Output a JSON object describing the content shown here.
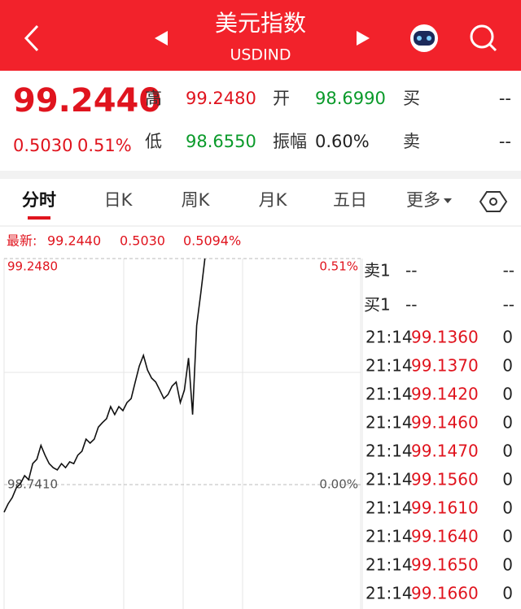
{
  "header": {
    "title": "美元指数",
    "subtitle": "USDIND"
  },
  "quote": {
    "price": "99.2440",
    "change": "0.5030",
    "change_pct": "0.51%",
    "stats": [
      {
        "label": "高",
        "value": "99.2480",
        "color": "#e0141e"
      },
      {
        "label": "开",
        "value": "98.6990",
        "color": "#0a9a2a"
      },
      {
        "label": "买",
        "value": "--",
        "color": "#222222"
      },
      {
        "label": "低",
        "value": "98.6550",
        "color": "#0a9a2a"
      },
      {
        "label": "振幅",
        "value": "0.60%",
        "color": "#222222"
      },
      {
        "label": "卖",
        "value": "--",
        "color": "#222222"
      }
    ]
  },
  "tabs": {
    "items": [
      "分时",
      "日K",
      "周K",
      "月K",
      "五日",
      "更多"
    ],
    "active": 0
  },
  "latest": {
    "label": "最新:",
    "price": "99.2440",
    "change": "0.5030",
    "change_pct": "0.5094%"
  },
  "chart_data": {
    "type": "line",
    "color": "#111111",
    "values": [
      98.679,
      98.698,
      98.712,
      98.734,
      98.743,
      98.761,
      98.752,
      98.788,
      98.798,
      98.829,
      98.807,
      98.788,
      98.779,
      98.774,
      98.788,
      98.779,
      98.792,
      98.788,
      98.807,
      98.816,
      98.843,
      98.834,
      98.843,
      98.87,
      98.88,
      98.889,
      98.916,
      98.898,
      98.916,
      98.907,
      98.925,
      98.934,
      98.971,
      99.007,
      99.031,
      98.998,
      98.98,
      98.971,
      98.953,
      98.934,
      98.943,
      98.962,
      98.971,
      98.925,
      98.953,
      99.025,
      98.898,
      99.098,
      99.171,
      99.248
    ],
    "xlim": [
      0,
      87
    ],
    "ylim": [
      98.462,
      99.248
    ],
    "yticks": [
      {
        "value": 99.248,
        "label": "99.2480"
      },
      {
        "value": 98.741,
        "label": "98.7410"
      }
    ],
    "y2lim": [
      -0.28,
      0.51
    ],
    "y2ticks": [
      {
        "value": 0.51,
        "label": "0.51%"
      },
      {
        "value": 0,
        "label": "0.00%"
      }
    ]
  },
  "order_book": [
    {
      "label": "卖1",
      "price": "--",
      "volume": "--"
    },
    {
      "label": "买1",
      "price": "--",
      "volume": "--"
    }
  ],
  "trades": [
    {
      "time": "21:14",
      "price": "99.1360",
      "volume": "0"
    },
    {
      "time": "21:14",
      "price": "99.1370",
      "volume": "0"
    },
    {
      "time": "21:14",
      "price": "99.1420",
      "volume": "0"
    },
    {
      "time": "21:14",
      "price": "99.1460",
      "volume": "0"
    },
    {
      "time": "21:14",
      "price": "99.1470",
      "volume": "0"
    },
    {
      "time": "21:14",
      "price": "99.1560",
      "volume": "0"
    },
    {
      "time": "21:14",
      "price": "99.1610",
      "volume": "0"
    },
    {
      "time": "21:14",
      "price": "99.1640",
      "volume": "0"
    },
    {
      "time": "21:14",
      "price": "99.1650",
      "volume": "0"
    },
    {
      "time": "21:14",
      "price": "99.1660",
      "volume": "0"
    }
  ]
}
